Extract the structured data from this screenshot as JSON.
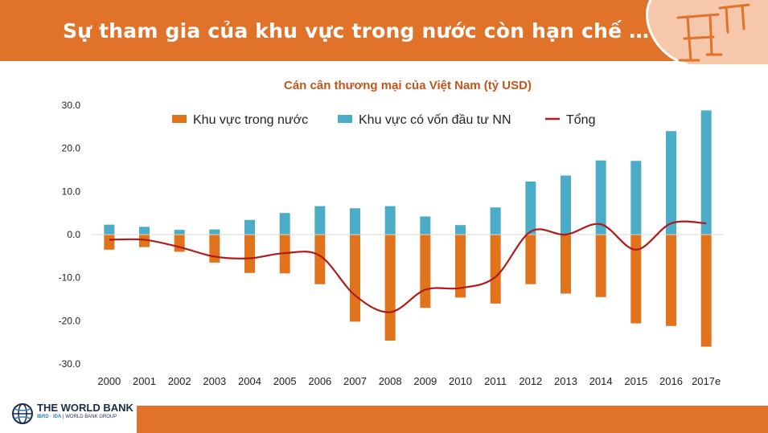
{
  "header": {
    "title": "Sự tham gia của khu vực trong nước còn hạn chế …"
  },
  "logo": {
    "name": "THE WORLD BANK",
    "sub_ibrd": "IBRD · IDA",
    "sub_group": "WORLD BANK GROUP"
  },
  "colors": {
    "banner": "#e0722a",
    "domestic": "#e0731c",
    "foreign": "#4aacc6",
    "total": "#b11a1a"
  },
  "chart_data": {
    "type": "bar",
    "title": "Cán cân thương mại của Việt Nam (tỷ USD)",
    "categories": [
      "2000",
      "2001",
      "2002",
      "2003",
      "2004",
      "2005",
      "2006",
      "2007",
      "2008",
      "2009",
      "2010",
      "2011",
      "2012",
      "2013",
      "2014",
      "2015",
      "2016",
      "2017e"
    ],
    "ylim": [
      -30,
      30
    ],
    "yticks": [
      "30.0",
      "20.0",
      "10.0",
      "0.0",
      "-10.0",
      "-20.0",
      "-30.0"
    ],
    "ytick_values": [
      30,
      20,
      10,
      0,
      -10,
      -20,
      -30
    ],
    "legend_position": "top",
    "grid": false,
    "series": [
      {
        "name": "Khu vực trong nước",
        "kind": "bar",
        "values": [
          -3.5,
          -2.9,
          -4.0,
          -6.5,
          -8.9,
          -9.0,
          -11.5,
          -20.2,
          -24.6,
          -17.0,
          -14.6,
          -16.0,
          -11.5,
          -13.7,
          -14.5,
          -20.6,
          -21.2,
          -26.0
        ]
      },
      {
        "name": "Khu vực có vốn đầu tư NN",
        "kind": "bar",
        "values": [
          2.3,
          1.8,
          1.1,
          1.2,
          3.4,
          5.0,
          6.6,
          6.1,
          6.6,
          4.2,
          2.2,
          6.3,
          12.3,
          13.7,
          17.2,
          17.1,
          24.0,
          28.8
        ]
      },
      {
        "name": "Tổng",
        "kind": "line",
        "values": [
          -1.2,
          -1.2,
          -2.9,
          -5.1,
          -5.5,
          -4.3,
          -4.9,
          -14.1,
          -18.0,
          -12.8,
          -12.4,
          -9.8,
          0.7,
          0.0,
          2.4,
          -3.5,
          2.6,
          2.6
        ]
      }
    ]
  }
}
